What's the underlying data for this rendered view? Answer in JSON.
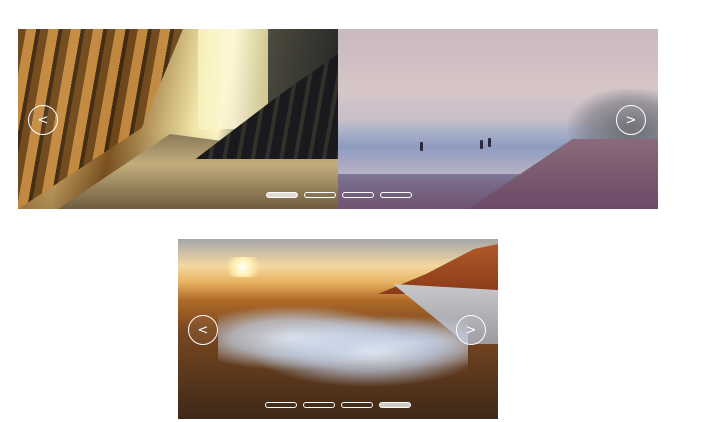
{
  "carousels": [
    {
      "prev_icon": "<",
      "next_icon": ">",
      "slides": [
        "hall-interior-photo",
        "beach-photo"
      ],
      "indicator_count": 4,
      "active_indicator": 1
    },
    {
      "prev_icon": "<",
      "next_icon": ">",
      "slides": [
        "frozen-road-sunset-photo"
      ],
      "indicator_count": 4,
      "active_indicator": 4
    }
  ]
}
